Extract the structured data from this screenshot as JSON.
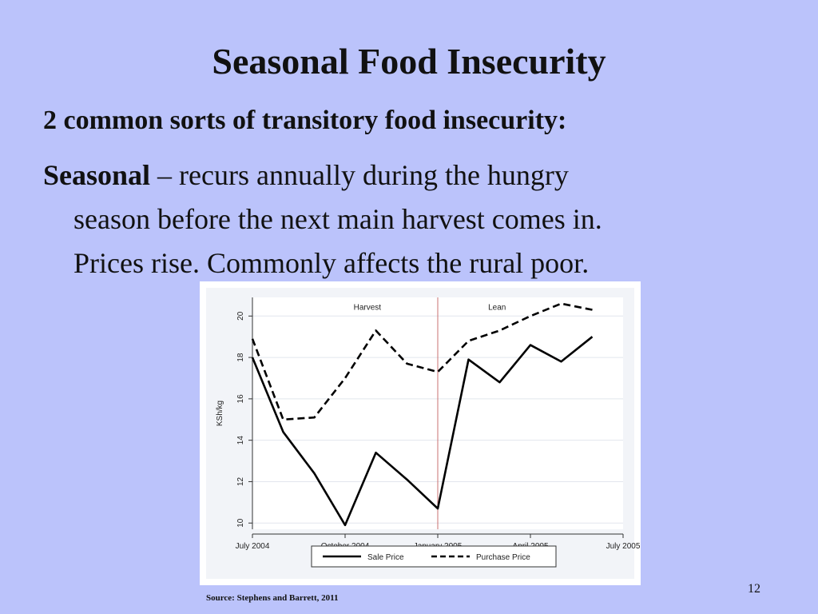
{
  "slide": {
    "title": "Seasonal  Food Insecurity",
    "subhead": "2 common sorts of transitory food insecurity:",
    "lead": "Seasonal",
    "line1_rest": " – recurs annually during the hungry",
    "line2": "season before the next main harvest comes in.",
    "line3": "Prices rise.  Commonly affects the rural poor.",
    "source": "Source: Stephens and Barrett, 2011",
    "page_number": "12"
  },
  "chart_data": {
    "type": "line",
    "title": "",
    "xlabel": "",
    "ylabel": "KSh/kg",
    "ylim": [
      9.7,
      20.9
    ],
    "xlim": [
      2004.5,
      2005.5
    ],
    "x_ticks": [
      {
        "value": 2004.5,
        "label": "July 2004"
      },
      {
        "value": 2004.75,
        "label": "October 2004"
      },
      {
        "value": 2005.0,
        "label": "January 2005"
      },
      {
        "value": 2005.25,
        "label": "April 2005"
      },
      {
        "value": 2005.5,
        "label": "July 2005"
      }
    ],
    "y_ticks": [
      10,
      12,
      14,
      16,
      18,
      20
    ],
    "grid": true,
    "vline": {
      "x": 2005.0,
      "color": "#c97070"
    },
    "annotations": [
      {
        "text": "Harvest",
        "x": 2004.81,
        "y": 20.3
      },
      {
        "text": "Lean",
        "x": 2005.16,
        "y": 20.3
      }
    ],
    "legend_position": "bottom",
    "series": [
      {
        "name": "Sale Price",
        "style": "solid",
        "x": [
          2004.5,
          2004.583,
          2004.667,
          2004.75,
          2004.833,
          2004.917,
          2005.0,
          2005.083,
          2005.167,
          2005.25,
          2005.333,
          2005.417
        ],
        "y": [
          18.0,
          14.4,
          12.4,
          9.9,
          13.4,
          12.1,
          10.7,
          17.9,
          16.8,
          18.6,
          17.8,
          19.0
        ]
      },
      {
        "name": "Purchase Price",
        "style": "dashed",
        "x": [
          2004.5,
          2004.583,
          2004.667,
          2004.75,
          2004.833,
          2004.917,
          2005.0,
          2005.083,
          2005.167,
          2005.25,
          2005.333,
          2005.417
        ],
        "y": [
          18.9,
          15.0,
          15.1,
          17.0,
          19.3,
          17.7,
          17.3,
          18.8,
          19.3,
          20.0,
          20.6,
          20.3
        ]
      }
    ]
  }
}
